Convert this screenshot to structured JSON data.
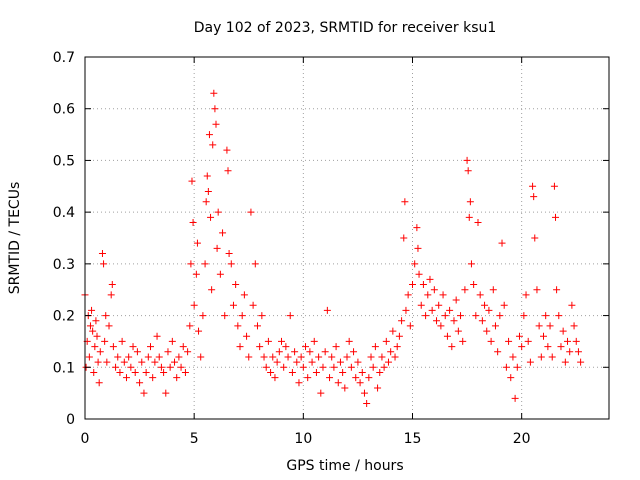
{
  "chart_data": {
    "type": "scatter",
    "title": "Day 102 of 2023, SRMTID for receiver ksu1",
    "xlabel": "GPS time / hours",
    "ylabel": "SRMTID / TECUs",
    "xlim": [
      0,
      24
    ],
    "ylim": [
      0,
      0.7
    ],
    "xticks": [
      0,
      5,
      10,
      15,
      20
    ],
    "xtick_labels": [
      "0",
      "5",
      "10",
      "15",
      "20"
    ],
    "yticks": [
      0,
      0.1,
      0.2,
      0.3,
      0.4,
      0.5,
      0.6,
      0.7
    ],
    "ytick_labels": [
      "0",
      "0.1",
      "0.2",
      "0.3",
      "0.4",
      "0.5",
      "0.6",
      "0.7"
    ],
    "grid": true,
    "marker": "+",
    "color": "#ff0000",
    "series": [
      {
        "name": "SRMTID",
        "points": [
          [
            0.0,
            0.24
          ],
          [
            0.05,
            0.1
          ],
          [
            0.1,
            0.15
          ],
          [
            0.15,
            0.2
          ],
          [
            0.2,
            0.12
          ],
          [
            0.25,
            0.18
          ],
          [
            0.3,
            0.21
          ],
          [
            0.35,
            0.17
          ],
          [
            0.4,
            0.09
          ],
          [
            0.45,
            0.14
          ],
          [
            0.5,
            0.19
          ],
          [
            0.55,
            0.16
          ],
          [
            0.6,
            0.11
          ],
          [
            0.65,
            0.07
          ],
          [
            0.7,
            0.13
          ],
          [
            0.8,
            0.32
          ],
          [
            0.85,
            0.3
          ],
          [
            0.9,
            0.15
          ],
          [
            0.95,
            0.2
          ],
          [
            1.0,
            0.11
          ],
          [
            1.1,
            0.18
          ],
          [
            1.2,
            0.24
          ],
          [
            1.25,
            0.26
          ],
          [
            1.3,
            0.14
          ],
          [
            1.4,
            0.1
          ],
          [
            1.5,
            0.12
          ],
          [
            1.6,
            0.09
          ],
          [
            1.7,
            0.15
          ],
          [
            1.8,
            0.11
          ],
          [
            1.9,
            0.08
          ],
          [
            2.0,
            0.12
          ],
          [
            2.1,
            0.1
          ],
          [
            2.2,
            0.14
          ],
          [
            2.3,
            0.09
          ],
          [
            2.4,
            0.13
          ],
          [
            2.5,
            0.07
          ],
          [
            2.6,
            0.11
          ],
          [
            2.7,
            0.05
          ],
          [
            2.8,
            0.09
          ],
          [
            2.9,
            0.12
          ],
          [
            3.0,
            0.14
          ],
          [
            3.1,
            0.08
          ],
          [
            3.2,
            0.11
          ],
          [
            3.3,
            0.16
          ],
          [
            3.4,
            0.12
          ],
          [
            3.5,
            0.1
          ],
          [
            3.6,
            0.09
          ],
          [
            3.7,
            0.05
          ],
          [
            3.8,
            0.13
          ],
          [
            3.9,
            0.1
          ],
          [
            4.0,
            0.15
          ],
          [
            4.1,
            0.11
          ],
          [
            4.2,
            0.08
          ],
          [
            4.3,
            0.12
          ],
          [
            4.4,
            0.1
          ],
          [
            4.5,
            0.14
          ],
          [
            4.6,
            0.09
          ],
          [
            4.7,
            0.13
          ],
          [
            4.8,
            0.18
          ],
          [
            4.85,
            0.3
          ],
          [
            4.9,
            0.46
          ],
          [
            4.95,
            0.38
          ],
          [
            5.0,
            0.22
          ],
          [
            5.1,
            0.28
          ],
          [
            5.15,
            0.34
          ],
          [
            5.2,
            0.17
          ],
          [
            5.3,
            0.12
          ],
          [
            5.4,
            0.2
          ],
          [
            5.5,
            0.3
          ],
          [
            5.55,
            0.42
          ],
          [
            5.6,
            0.47
          ],
          [
            5.65,
            0.44
          ],
          [
            5.7,
            0.55
          ],
          [
            5.75,
            0.39
          ],
          [
            5.8,
            0.25
          ],
          [
            5.85,
            0.53
          ],
          [
            5.9,
            0.63
          ],
          [
            5.95,
            0.6
          ],
          [
            6.0,
            0.57
          ],
          [
            6.05,
            0.33
          ],
          [
            6.1,
            0.4
          ],
          [
            6.2,
            0.28
          ],
          [
            6.3,
            0.36
          ],
          [
            6.4,
            0.2
          ],
          [
            6.5,
            0.52
          ],
          [
            6.55,
            0.48
          ],
          [
            6.6,
            0.32
          ],
          [
            6.7,
            0.3
          ],
          [
            6.8,
            0.22
          ],
          [
            6.9,
            0.26
          ],
          [
            7.0,
            0.18
          ],
          [
            7.1,
            0.14
          ],
          [
            7.2,
            0.2
          ],
          [
            7.3,
            0.24
          ],
          [
            7.4,
            0.16
          ],
          [
            7.5,
            0.12
          ],
          [
            7.6,
            0.4
          ],
          [
            7.7,
            0.22
          ],
          [
            7.8,
            0.3
          ],
          [
            7.9,
            0.18
          ],
          [
            8.0,
            0.14
          ],
          [
            8.1,
            0.2
          ],
          [
            8.2,
            0.12
          ],
          [
            8.3,
            0.1
          ],
          [
            8.4,
            0.15
          ],
          [
            8.5,
            0.09
          ],
          [
            8.6,
            0.12
          ],
          [
            8.7,
            0.08
          ],
          [
            8.8,
            0.11
          ],
          [
            8.9,
            0.13
          ],
          [
            9.0,
            0.15
          ],
          [
            9.1,
            0.1
          ],
          [
            9.2,
            0.14
          ],
          [
            9.3,
            0.12
          ],
          [
            9.4,
            0.2
          ],
          [
            9.5,
            0.09
          ],
          [
            9.6,
            0.13
          ],
          [
            9.7,
            0.11
          ],
          [
            9.8,
            0.07
          ],
          [
            9.9,
            0.12
          ],
          [
            10.0,
            0.1
          ],
          [
            10.1,
            0.14
          ],
          [
            10.2,
            0.08
          ],
          [
            10.3,
            0.13
          ],
          [
            10.4,
            0.11
          ],
          [
            10.5,
            0.15
          ],
          [
            10.6,
            0.09
          ],
          [
            10.7,
            0.12
          ],
          [
            10.8,
            0.05
          ],
          [
            10.9,
            0.1
          ],
          [
            11.0,
            0.13
          ],
          [
            11.1,
            0.21
          ],
          [
            11.2,
            0.08
          ],
          [
            11.3,
            0.12
          ],
          [
            11.4,
            0.1
          ],
          [
            11.5,
            0.14
          ],
          [
            11.6,
            0.07
          ],
          [
            11.7,
            0.11
          ],
          [
            11.8,
            0.09
          ],
          [
            11.9,
            0.06
          ],
          [
            12.0,
            0.12
          ],
          [
            12.1,
            0.15
          ],
          [
            12.2,
            0.1
          ],
          [
            12.3,
            0.13
          ],
          [
            12.4,
            0.08
          ],
          [
            12.5,
            0.11
          ],
          [
            12.6,
            0.07
          ],
          [
            12.7,
            0.09
          ],
          [
            12.8,
            0.05
          ],
          [
            12.9,
            0.03
          ],
          [
            13.0,
            0.08
          ],
          [
            13.1,
            0.12
          ],
          [
            13.2,
            0.1
          ],
          [
            13.3,
            0.14
          ],
          [
            13.4,
            0.06
          ],
          [
            13.5,
            0.09
          ],
          [
            13.6,
            0.12
          ],
          [
            13.7,
            0.1
          ],
          [
            13.8,
            0.15
          ],
          [
            13.9,
            0.11
          ],
          [
            14.0,
            0.13
          ],
          [
            14.1,
            0.17
          ],
          [
            14.2,
            0.12
          ],
          [
            14.3,
            0.14
          ],
          [
            14.4,
            0.16
          ],
          [
            14.5,
            0.19
          ],
          [
            14.6,
            0.35
          ],
          [
            14.65,
            0.42
          ],
          [
            14.7,
            0.21
          ],
          [
            14.8,
            0.24
          ],
          [
            14.9,
            0.18
          ],
          [
            15.0,
            0.26
          ],
          [
            15.1,
            0.3
          ],
          [
            15.2,
            0.37
          ],
          [
            15.25,
            0.33
          ],
          [
            15.3,
            0.28
          ],
          [
            15.4,
            0.22
          ],
          [
            15.5,
            0.26
          ],
          [
            15.6,
            0.2
          ],
          [
            15.7,
            0.24
          ],
          [
            15.8,
            0.27
          ],
          [
            15.9,
            0.21
          ],
          [
            16.0,
            0.25
          ],
          [
            16.1,
            0.19
          ],
          [
            16.2,
            0.22
          ],
          [
            16.3,
            0.18
          ],
          [
            16.4,
            0.24
          ],
          [
            16.5,
            0.2
          ],
          [
            16.6,
            0.16
          ],
          [
            16.7,
            0.21
          ],
          [
            16.8,
            0.14
          ],
          [
            16.9,
            0.19
          ],
          [
            17.0,
            0.23
          ],
          [
            17.1,
            0.17
          ],
          [
            17.2,
            0.2
          ],
          [
            17.3,
            0.15
          ],
          [
            17.4,
            0.25
          ],
          [
            17.5,
            0.5
          ],
          [
            17.55,
            0.48
          ],
          [
            17.6,
            0.39
          ],
          [
            17.65,
            0.42
          ],
          [
            17.7,
            0.3
          ],
          [
            17.8,
            0.26
          ],
          [
            17.9,
            0.2
          ],
          [
            18.0,
            0.38
          ],
          [
            18.1,
            0.24
          ],
          [
            18.2,
            0.19
          ],
          [
            18.3,
            0.22
          ],
          [
            18.4,
            0.17
          ],
          [
            18.5,
            0.21
          ],
          [
            18.6,
            0.15
          ],
          [
            18.7,
            0.25
          ],
          [
            18.8,
            0.18
          ],
          [
            18.9,
            0.13
          ],
          [
            19.0,
            0.2
          ],
          [
            19.1,
            0.34
          ],
          [
            19.2,
            0.22
          ],
          [
            19.3,
            0.1
          ],
          [
            19.4,
            0.15
          ],
          [
            19.5,
            0.08
          ],
          [
            19.6,
            0.12
          ],
          [
            19.7,
            0.04
          ],
          [
            19.8,
            0.1
          ],
          [
            19.9,
            0.16
          ],
          [
            20.0,
            0.14
          ],
          [
            20.1,
            0.2
          ],
          [
            20.2,
            0.24
          ],
          [
            20.3,
            0.15
          ],
          [
            20.4,
            0.11
          ],
          [
            20.5,
            0.45
          ],
          [
            20.55,
            0.43
          ],
          [
            20.6,
            0.35
          ],
          [
            20.7,
            0.25
          ],
          [
            20.8,
            0.18
          ],
          [
            20.9,
            0.12
          ],
          [
            21.0,
            0.16
          ],
          [
            21.1,
            0.2
          ],
          [
            21.2,
            0.14
          ],
          [
            21.3,
            0.18
          ],
          [
            21.4,
            0.12
          ],
          [
            21.5,
            0.45
          ],
          [
            21.55,
            0.39
          ],
          [
            21.6,
            0.25
          ],
          [
            21.7,
            0.2
          ],
          [
            21.8,
            0.14
          ],
          [
            21.9,
            0.17
          ],
          [
            22.0,
            0.11
          ],
          [
            22.1,
            0.15
          ],
          [
            22.2,
            0.13
          ],
          [
            22.3,
            0.22
          ],
          [
            22.4,
            0.18
          ],
          [
            22.5,
            0.15
          ],
          [
            22.6,
            0.13
          ],
          [
            22.7,
            0.11
          ]
        ]
      }
    ]
  }
}
